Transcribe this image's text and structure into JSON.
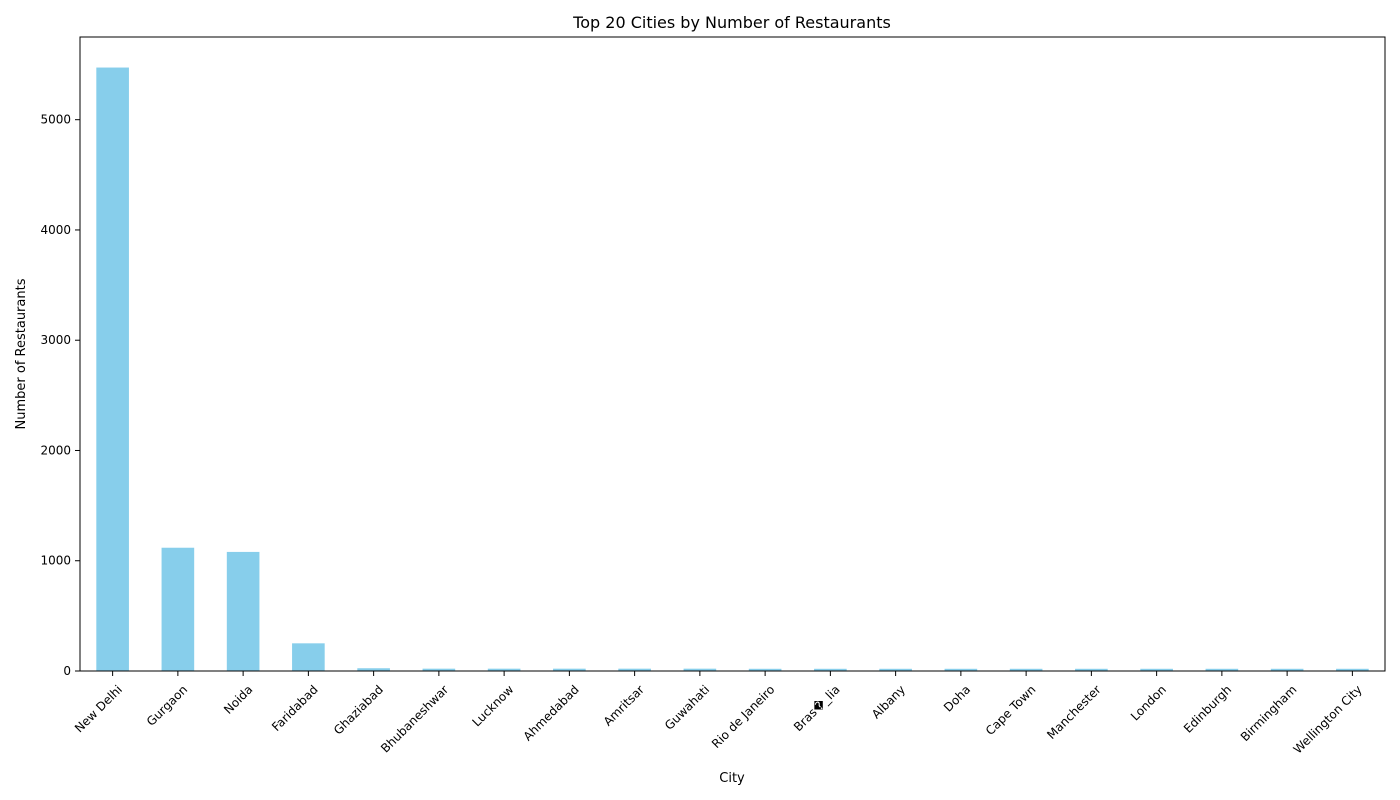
{
  "chart_data": {
    "type": "bar",
    "title": "Top 20 Cities by Number of Restaurants",
    "xlabel": "City",
    "ylabel": "Number of Restaurants",
    "categories": [
      "New Delhi",
      "Gurgaon",
      "Noida",
      "Faridabad",
      "Ghaziabad",
      "Bhubaneshwar",
      "Lucknow",
      "Ahmedabad",
      "Amritsar",
      "Guwahati",
      "Rio de Janeiro",
      "Bras�_lia",
      "Albany",
      "Doha",
      "Cape Town",
      "Manchester",
      "London",
      "Edinburgh",
      "Birmingham",
      "Wellington City"
    ],
    "values": [
      5473,
      1118,
      1080,
      251,
      25,
      21,
      21,
      21,
      21,
      21,
      20,
      20,
      20,
      20,
      20,
      20,
      20,
      20,
      20,
      20
    ],
    "ylim": [
      0,
      5750
    ],
    "yticks": [
      0,
      1000,
      2000,
      3000,
      4000,
      5000
    ],
    "bar_color": "#87ceeb",
    "grid": false,
    "legend": "none"
  }
}
